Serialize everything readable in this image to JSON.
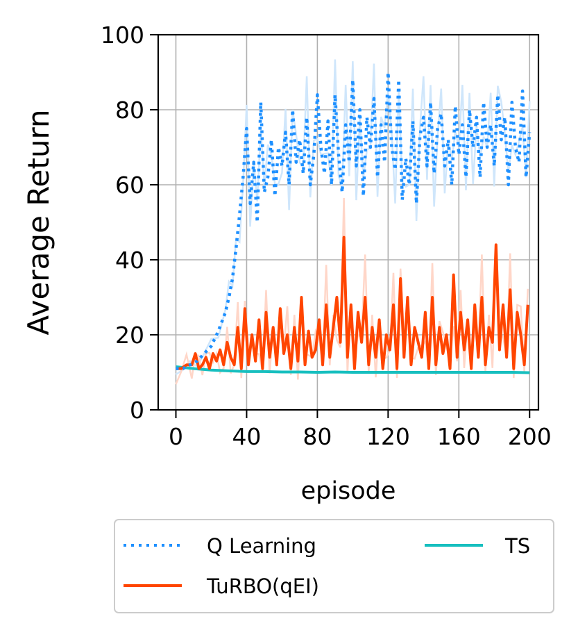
{
  "chart_data": {
    "type": "line",
    "xlabel": "episode",
    "ylabel": "Average Return",
    "xlim": [
      -10,
      205
    ],
    "ylim": [
      0,
      100
    ],
    "xticks": [
      0,
      40,
      80,
      120,
      160,
      200
    ],
    "yticks": [
      0,
      20,
      40,
      60,
      80,
      100
    ],
    "grid": true,
    "legend_placement": "below",
    "legend_columns": 2,
    "colors": {
      "q_learning": "#1E90FF",
      "turbo": "#FF4500",
      "ts": "#17BFBF",
      "q_band": "#CFE6FB",
      "turbo_band": "#FFD6C8"
    },
    "series": [
      {
        "name": "Q Learning",
        "style": "dotted",
        "color": "#1E90FF",
        "x": [
          0,
          4,
          8,
          12,
          16,
          20,
          24,
          28,
          30,
          32,
          34,
          36,
          38,
          40,
          42,
          44,
          46,
          48,
          50,
          52,
          54,
          56,
          58,
          60,
          62,
          64,
          66,
          68,
          70,
          72,
          74,
          76,
          78,
          80,
          82,
          84,
          86,
          88,
          90,
          92,
          94,
          96,
          98,
          100,
          102,
          104,
          106,
          108,
          110,
          112,
          114,
          116,
          118,
          120,
          122,
          124,
          126,
          128,
          130,
          132,
          134,
          136,
          138,
          140,
          142,
          144,
          146,
          148,
          150,
          152,
          154,
          156,
          158,
          160,
          162,
          164,
          166,
          168,
          170,
          172,
          174,
          176,
          178,
          180,
          182,
          184,
          186,
          188,
          190,
          192,
          194,
          196,
          198,
          200
        ],
        "y": [
          11,
          11,
          12,
          13,
          15,
          17,
          21,
          26,
          30,
          35,
          43,
          52,
          62,
          75,
          55,
          66,
          50,
          82,
          58,
          62,
          72,
          57,
          70,
          65,
          74,
          60,
          80,
          66,
          72,
          63,
          78,
          60,
          68,
          84,
          70,
          63,
          77,
          60,
          84,
          68,
          58,
          76,
          66,
          88,
          65,
          80,
          57,
          78,
          70,
          83,
          62,
          76,
          66,
          90,
          70,
          64,
          88,
          56,
          67,
          60,
          77,
          55,
          73,
          78,
          65,
          82,
          63,
          75,
          79,
          65,
          72,
          60,
          81,
          68,
          76,
          62,
          80,
          70,
          78,
          62,
          82,
          70,
          76,
          65,
          84,
          72,
          78,
          60,
          82,
          70,
          66,
          85,
          62,
          74
        ]
      },
      {
        "name": "TuRBO(qEI)",
        "style": "solid",
        "color": "#FF4500",
        "x": [
          0,
          3,
          6,
          9,
          11,
          13,
          15,
          17,
          19,
          21,
          23,
          25,
          27,
          29,
          31,
          33,
          35,
          37,
          39,
          41,
          43,
          45,
          47,
          49,
          51,
          53,
          55,
          57,
          59,
          61,
          63,
          65,
          67,
          69,
          71,
          73,
          75,
          77,
          79,
          81,
          83,
          85,
          87,
          89,
          91,
          93,
          95,
          97,
          99,
          101,
          103,
          105,
          107,
          109,
          111,
          113,
          115,
          117,
          119,
          121,
          123,
          125,
          127,
          129,
          131,
          133,
          135,
          137,
          139,
          141,
          143,
          145,
          147,
          149,
          151,
          153,
          155,
          157,
          159,
          161,
          163,
          165,
          167,
          169,
          171,
          173,
          175,
          177,
          179,
          181,
          183,
          185,
          187,
          189,
          191,
          193,
          195,
          197,
          199
        ],
        "y": [
          11,
          11,
          12,
          12,
          15,
          11,
          12,
          14,
          11,
          15,
          13,
          16,
          12,
          18,
          14,
          12,
          22,
          11,
          27,
          12,
          20,
          13,
          24,
          11,
          26,
          14,
          22,
          12,
          27,
          15,
          20,
          11,
          22,
          13,
          30,
          12,
          21,
          14,
          16,
          24,
          12,
          28,
          14,
          22,
          30,
          18,
          46,
          14,
          28,
          11,
          26,
          18,
          30,
          12,
          22,
          14,
          24,
          11,
          20,
          16,
          28,
          11,
          35,
          14,
          30,
          12,
          22,
          18,
          14,
          26,
          11,
          30,
          12,
          22,
          15,
          20,
          11,
          36,
          14,
          26,
          16,
          24,
          11,
          28,
          14,
          30,
          12,
          22,
          18,
          44,
          16,
          28,
          14,
          32,
          11,
          26,
          20,
          12,
          28
        ]
      },
      {
        "name": "TS",
        "style": "solid",
        "color": "#17BFBF",
        "x": [
          0,
          10,
          20,
          30,
          40,
          50,
          60,
          70,
          80,
          90,
          100,
          110,
          120,
          130,
          140,
          150,
          160,
          170,
          180,
          190,
          200
        ],
        "y": [
          11.5,
          11,
          10.6,
          10.4,
          10.2,
          10.2,
          10.1,
          10.1,
          10,
          10.1,
          10,
          10,
          10,
          10,
          10,
          10,
          10,
          10,
          10,
          10,
          9.9
        ]
      }
    ]
  }
}
